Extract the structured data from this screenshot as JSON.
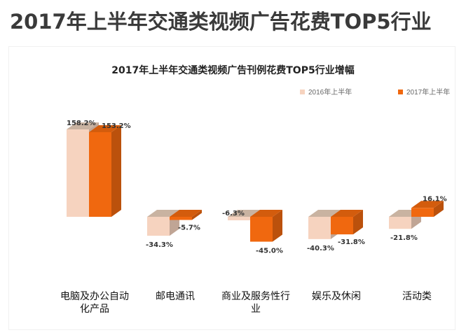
{
  "page": {
    "title": "2017年上半年交通类视频广告花费TOP5行业"
  },
  "chart_data": {
    "type": "bar",
    "title": "2017年上半年交通类视频广告刊例花费TOP5行业增幅",
    "categories": [
      "电脑及办公自动化产品",
      "邮电通讯",
      "商业及服务性行业",
      "娱乐及休闲",
      "活动类"
    ],
    "category_lines": [
      [
        "电脑及办公自动",
        "化产品"
      ],
      [
        "邮电通讯"
      ],
      [
        "商业及服务性行",
        "业"
      ],
      [
        "娱乐及休闲"
      ],
      [
        "活动类"
      ]
    ],
    "series": [
      {
        "name": "2016年上半年",
        "color": "#f6d3bf",
        "values": [
          158.2,
          -34.3,
          -6.3,
          -40.3,
          -21.8
        ],
        "labels": [
          "158.2%",
          "-34.3%",
          "-6.3%",
          "-40.3%",
          "-21.8%"
        ]
      },
      {
        "name": "2017年上半年",
        "color": "#f0680f",
        "values": [
          153.2,
          -5.7,
          -45.0,
          -31.8,
          16.1
        ],
        "labels": [
          "153.2%",
          "-5.7%",
          "-45.0%",
          "-31.8%",
          "16.1%"
        ]
      }
    ],
    "legend_position": "top-right",
    "grid": false,
    "three_d": true
  }
}
